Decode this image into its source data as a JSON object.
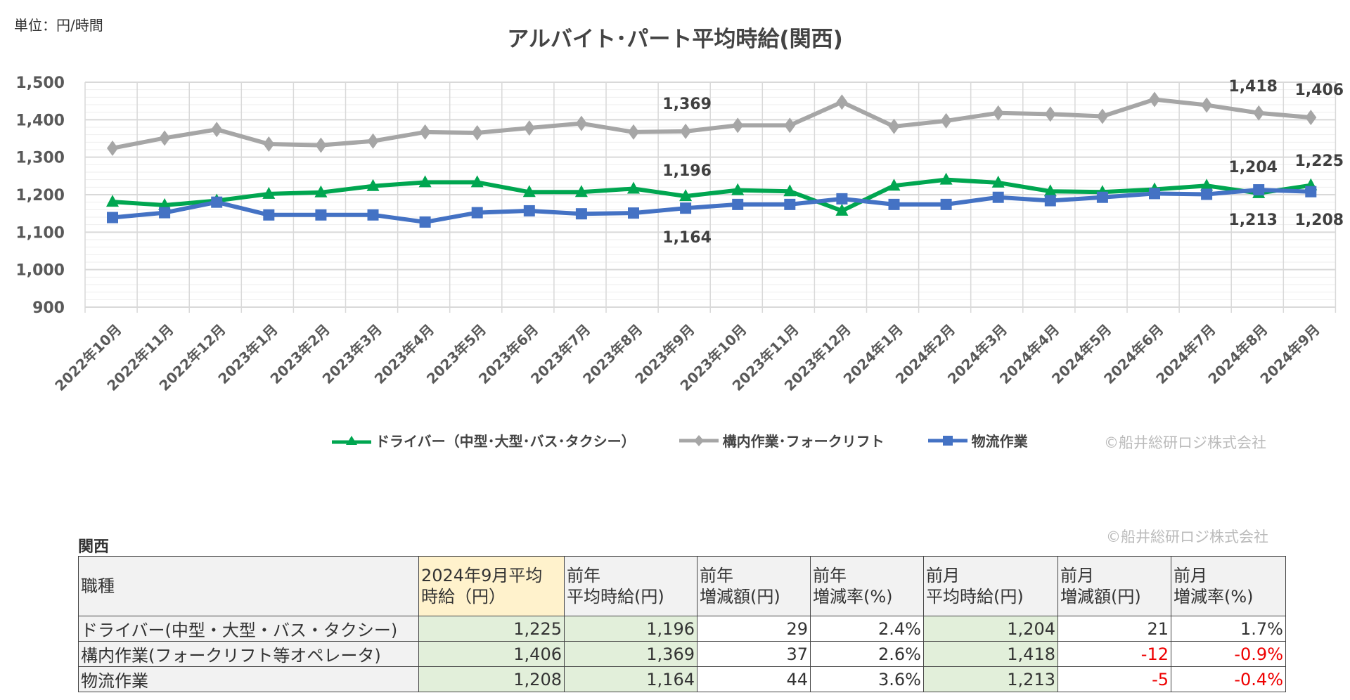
{
  "unit_label": "単位：円/時間",
  "copyright": "©船井総研ロジ株式会社",
  "chart_data": {
    "type": "line",
    "title": "アルバイト･パート平均時給(関西)",
    "categories": [
      "2022年10月",
      "2022年11月",
      "2022年12月",
      "2023年1月",
      "2023年2月",
      "2023年3月",
      "2023年4月",
      "2023年5月",
      "2023年6月",
      "2023年7月",
      "2023年8月",
      "2023年9月",
      "2023年10月",
      "2023年11月",
      "2023年12月",
      "2024年1月",
      "2024年2月",
      "2024年3月",
      "2024年4月",
      "2024年5月",
      "2024年6月",
      "2024年7月",
      "2024年8月",
      "2024年9月"
    ],
    "ylim": [
      900,
      1500
    ],
    "yticks": [
      900,
      1000,
      1100,
      1200,
      1300,
      1400,
      1500
    ],
    "ytick_labels": [
      "900",
      "1,000",
      "1,100",
      "1,200",
      "1,300",
      "1,400",
      "1,500"
    ],
    "grid": true,
    "legend_position": "bottom",
    "series": [
      {
        "name": "ドライバー（中型･大型･バス･タクシー）",
        "color": "#00a650",
        "marker": "triangle",
        "values": [
          1181,
          1172,
          1184,
          1202,
          1206,
          1223,
          1233,
          1233,
          1207,
          1207,
          1216,
          1196,
          1212,
          1209,
          1157,
          1224,
          1240,
          1232,
          1209,
          1207,
          1214,
          1224,
          1204,
          1225
        ],
        "labels": [
          {
            "index": 11,
            "text": "1,196",
            "pos": "above"
          },
          {
            "index": 22,
            "text": "1,204",
            "pos": "above"
          },
          {
            "index": 23,
            "text": "1,225",
            "pos": "above"
          }
        ]
      },
      {
        "name": "構内作業･フォークリフト",
        "color": "#a6a6a6",
        "marker": "diamond",
        "values": [
          1324,
          1351,
          1374,
          1335,
          1332,
          1343,
          1367,
          1365,
          1378,
          1390,
          1367,
          1369,
          1385,
          1385,
          1447,
          1382,
          1397,
          1418,
          1415,
          1409,
          1454,
          1439,
          1418,
          1406
        ],
        "labels": [
          {
            "index": 11,
            "text": "1,369",
            "pos": "above"
          },
          {
            "index": 22,
            "text": "1,418",
            "pos": "above"
          },
          {
            "index": 23,
            "text": "1,406",
            "pos": "above"
          }
        ]
      },
      {
        "name": "物流作業",
        "color": "#4472c4",
        "marker": "square",
        "values": [
          1139,
          1152,
          1180,
          1146,
          1146,
          1146,
          1127,
          1152,
          1157,
          1149,
          1151,
          1164,
          1174,
          1174,
          1189,
          1174,
          1174,
          1193,
          1184,
          1193,
          1203,
          1201,
          1213,
          1208
        ],
        "labels": [
          {
            "index": 11,
            "text": "1,164",
            "pos": "below"
          },
          {
            "index": 22,
            "text": "1,213",
            "pos": "below"
          },
          {
            "index": 23,
            "text": "1,208",
            "pos": "below"
          }
        ]
      }
    ]
  },
  "table": {
    "region": "関西",
    "headers": [
      "職種",
      "2024年9月平均\n時給（円）",
      "前年\n平均時給(円)",
      "前年\n増減額(円)",
      "前年\n増減率(%)",
      "前月\n平均時給(円)",
      "前月\n増減額(円)",
      "前月\n増減率(%)"
    ],
    "rows": [
      [
        "ドライバー(中型・大型・バス・タクシー)",
        "1,225",
        "1,196",
        "29",
        "2.4%",
        "1,204",
        "21",
        "1.7%"
      ],
      [
        "構内作業(フォークリフト等オペレータ)",
        "1,406",
        "1,369",
        "37",
        "2.6%",
        "1,418",
        "-12",
        "-0.9%"
      ],
      [
        "物流作業",
        "1,208",
        "1,164",
        "44",
        "3.6%",
        "1,213",
        "-5",
        "-0.4%"
      ]
    ]
  }
}
